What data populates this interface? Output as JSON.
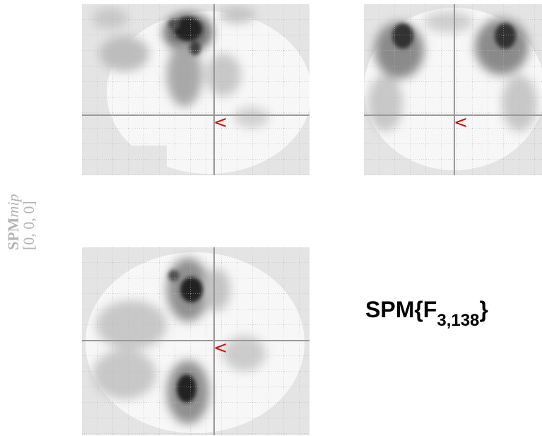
{
  "mip_label": {
    "spm": "SPM",
    "mip": "mip",
    "coords": "[0, 0, 0]"
  },
  "stat_label": {
    "prefix": "SPM{F",
    "subscript": "3,138",
    "suffix": "}"
  },
  "cursor_marker": "<",
  "colors": {
    "background": "#e4e4e4",
    "brain": "#f7f7f7",
    "grid": "#b8b8b8",
    "crosshair": "#999999",
    "cursor": "#e00000"
  }
}
